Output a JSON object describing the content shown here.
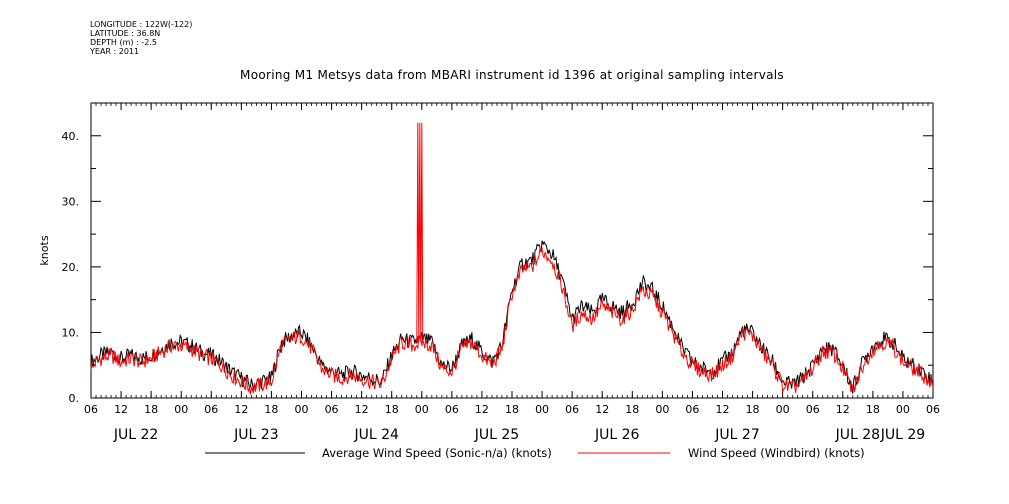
{
  "header": {
    "longitude": "LONGITUDE : 122W(-122)",
    "latitude": "LATITUDE : 36.8N",
    "depth": "DEPTH (m) : -2.5",
    "year": "YEAR : 2011"
  },
  "chart_data": {
    "type": "line",
    "title": "Mooring M1 Metsys data from MBARI instrument id 1396 at original sampling intervals",
    "ylabel": "knots",
    "xlabel": "",
    "ylim": [
      0,
      45
    ],
    "yticks": [
      0,
      10,
      20,
      30,
      40
    ],
    "ytick_labels": [
      "0.",
      "10.",
      "20.",
      "30.",
      "40."
    ],
    "x_unit": "hours since JUL 22 00:00, 2011",
    "xlim": [
      6,
      174
    ],
    "hour_labels": [
      "06",
      "12",
      "18",
      "00",
      "06",
      "12",
      "18",
      "00",
      "06",
      "12",
      "18",
      "00",
      "06",
      "12",
      "18",
      "00",
      "06",
      "12",
      "18",
      "00",
      "06",
      "12",
      "18",
      "00",
      "06",
      "12",
      "18",
      "00",
      "06"
    ],
    "day_labels": [
      {
        "label": "JUL 22",
        "hour": 15
      },
      {
        "label": "JUL 23",
        "hour": 39
      },
      {
        "label": "JUL 24",
        "hour": 63
      },
      {
        "label": "JUL 25",
        "hour": 87
      },
      {
        "label": "JUL 26",
        "hour": 111
      },
      {
        "label": "JUL 27",
        "hour": 135
      },
      {
        "label": "JUL 28",
        "hour": 159
      },
      {
        "label": "JUL 29",
        "hour": 168
      }
    ],
    "legend": "bottom",
    "series": [
      {
        "name": "Average Wind Speed (Sonic-n/a) (knots)",
        "color": "#000000",
        "x": [
          6,
          8,
          10,
          12,
          14,
          16,
          18,
          20,
          22,
          24,
          26,
          28,
          30,
          32,
          34,
          36,
          38,
          40,
          42,
          44,
          46,
          48,
          50,
          52,
          54,
          56,
          58,
          60,
          62,
          64,
          66,
          68,
          70,
          72,
          74,
          76,
          78,
          80,
          82,
          84,
          86,
          88,
          90,
          92,
          94,
          96,
          98,
          100,
          102,
          104,
          106,
          108,
          110,
          112,
          114,
          116,
          118,
          120,
          122,
          124,
          126,
          128,
          130,
          132,
          134,
          136,
          138,
          140,
          142,
          144,
          146,
          148,
          150,
          152,
          154,
          156,
          158,
          160,
          162,
          164,
          166,
          168,
          170,
          172,
          174
        ],
        "y": [
          5.5,
          6.5,
          7.0,
          6.0,
          6.5,
          6.0,
          6.5,
          7.5,
          8.5,
          8.5,
          8.0,
          7.0,
          6.5,
          5.5,
          4.0,
          3.0,
          2.0,
          2.5,
          3.0,
          8.5,
          9.5,
          10.0,
          8.0,
          5.0,
          4.0,
          3.5,
          4.0,
          3.5,
          3.0,
          2.5,
          6.5,
          9.0,
          8.5,
          9.0,
          8.5,
          5.0,
          4.5,
          8.0,
          9.0,
          7.0,
          5.5,
          8.0,
          16.5,
          20.5,
          21.0,
          23.5,
          22.0,
          18.0,
          12.0,
          14.0,
          13.0,
          15.0,
          14.0,
          13.0,
          14.5,
          17.5,
          16.5,
          14.0,
          11.0,
          7.5,
          5.5,
          4.5,
          4.0,
          5.5,
          7.0,
          10.5,
          10.0,
          7.5,
          5.5,
          2.5,
          2.0,
          3.0,
          5.0,
          7.5,
          7.5,
          5.0,
          1.5,
          5.5,
          8.0,
          9.0,
          8.5,
          6.0,
          5.0,
          4.0,
          2.5
        ]
      },
      {
        "name": "Wind Speed (Windbird) (knots)",
        "color": "#ff0000",
        "x": [
          6,
          8,
          10,
          12,
          14,
          16,
          18,
          20,
          22,
          24,
          26,
          28,
          30,
          32,
          34,
          36,
          38,
          40,
          42,
          44,
          46,
          48,
          50,
          52,
          54,
          56,
          58,
          60,
          62,
          64,
          66,
          68,
          70,
          72,
          74,
          76,
          78,
          80,
          82,
          84,
          86,
          88,
          90,
          92,
          94,
          96,
          98,
          100,
          102,
          104,
          106,
          108,
          110,
          112,
          114,
          116,
          118,
          120,
          122,
          124,
          126,
          128,
          130,
          132,
          134,
          136,
          138,
          140,
          142,
          144,
          146,
          148,
          150,
          152,
          154,
          156,
          158,
          160,
          162,
          164,
          166,
          168,
          170,
          172,
          174
        ],
        "y": [
          5.0,
          6.0,
          6.5,
          5.5,
          6.0,
          5.5,
          6.0,
          7.0,
          8.0,
          8.0,
          7.5,
          6.5,
          6.0,
          5.0,
          3.5,
          2.5,
          1.5,
          2.0,
          2.5,
          8.0,
          9.0,
          9.5,
          7.5,
          4.5,
          3.5,
          3.0,
          3.5,
          3.0,
          2.5,
          2.0,
          6.0,
          8.5,
          8.0,
          8.5,
          8.0,
          4.5,
          4.0,
          7.5,
          8.5,
          6.5,
          5.0,
          7.5,
          16.0,
          19.5,
          20.0,
          22.5,
          21.0,
          17.0,
          11.0,
          13.0,
          12.0,
          14.0,
          13.0,
          12.0,
          13.5,
          16.5,
          15.5,
          13.0,
          10.0,
          7.0,
          5.0,
          4.0,
          3.5,
          5.0,
          6.5,
          10.0,
          9.5,
          7.0,
          5.0,
          2.0,
          1.5,
          2.5,
          4.5,
          7.0,
          7.0,
          4.5,
          1.0,
          5.0,
          7.5,
          8.5,
          8.0,
          5.5,
          4.5,
          3.5,
          2.0
        ]
      },
      {
        "name": "",
        "color": "#ff0000",
        "x": [
          71.0,
          71.2,
          71.4,
          71.6,
          71.8,
          72.0,
          72.2
        ],
        "y": [
          8.5,
          42.0,
          8.5,
          42.0,
          8.5,
          42.0,
          9.0
        ]
      }
    ]
  }
}
